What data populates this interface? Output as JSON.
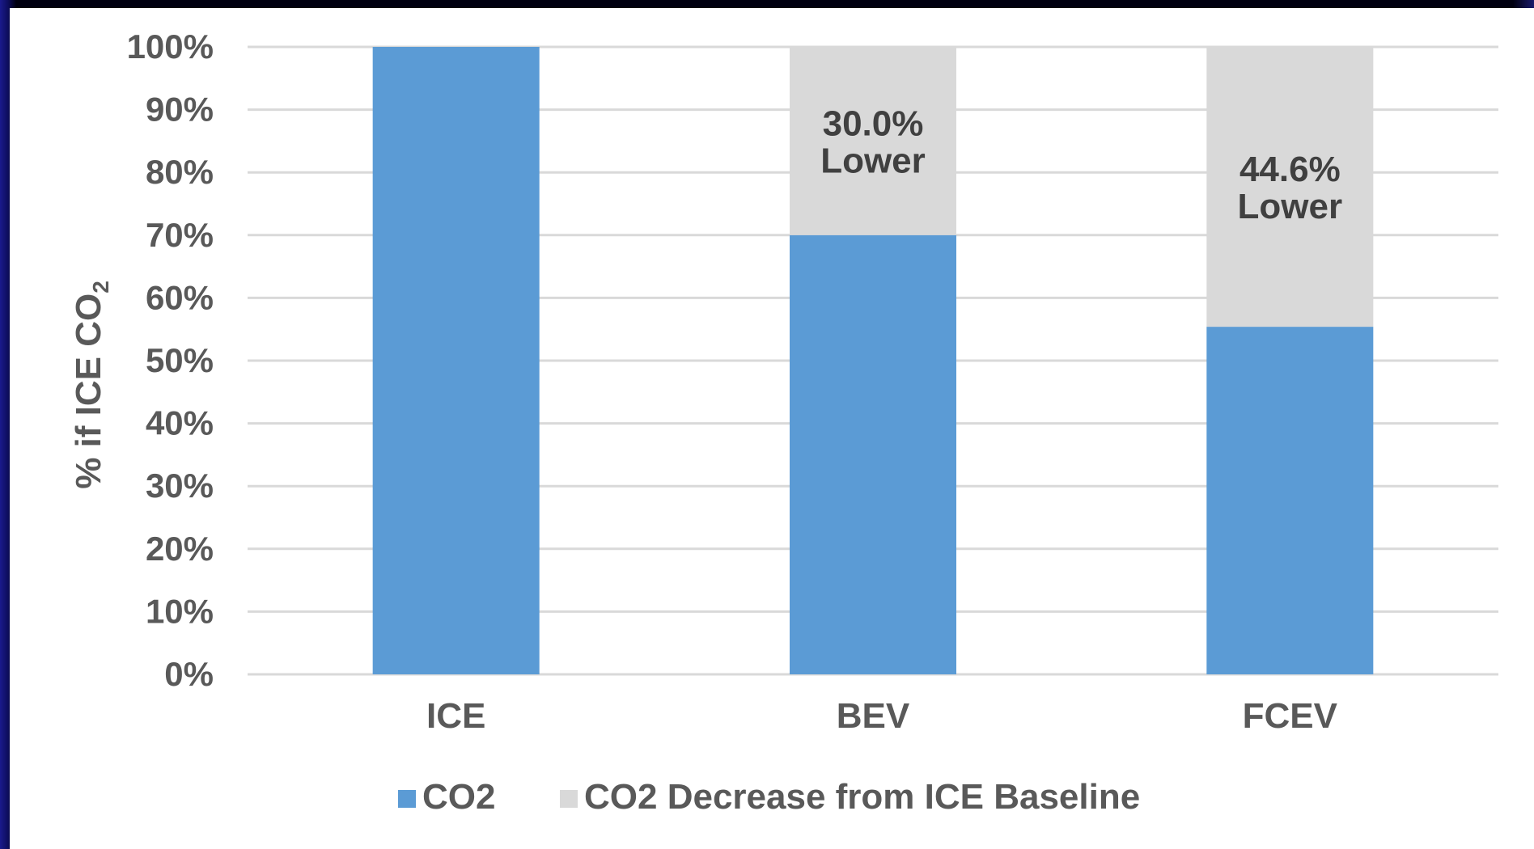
{
  "chart_data": {
    "type": "bar",
    "stacked": true,
    "title": "",
    "xlabel": "",
    "ylabel": "% if ICE CO",
    "ylabel_subscript": "2",
    "ylim": [
      0,
      100
    ],
    "y_tick_labels": [
      "0%",
      "10%",
      "20%",
      "30%",
      "40%",
      "50%",
      "60%",
      "70%",
      "80%",
      "90%",
      "100%"
    ],
    "categories": [
      "ICE",
      "BEV",
      "FCEV"
    ],
    "series": [
      {
        "name": "CO2",
        "values": [
          100,
          70.0,
          55.4
        ],
        "color": "#5b9bd5"
      },
      {
        "name": "CO2 Decrease from ICE Baseline",
        "values": [
          0,
          30.0,
          44.6
        ],
        "color": "#d9d9d9"
      }
    ],
    "annotations": [
      {
        "category": "BEV",
        "lines": [
          "30.0%",
          "Lower"
        ]
      },
      {
        "category": "FCEV",
        "lines": [
          "44.6%",
          "Lower"
        ]
      }
    ],
    "grid": true,
    "legend_position": "bottom"
  }
}
